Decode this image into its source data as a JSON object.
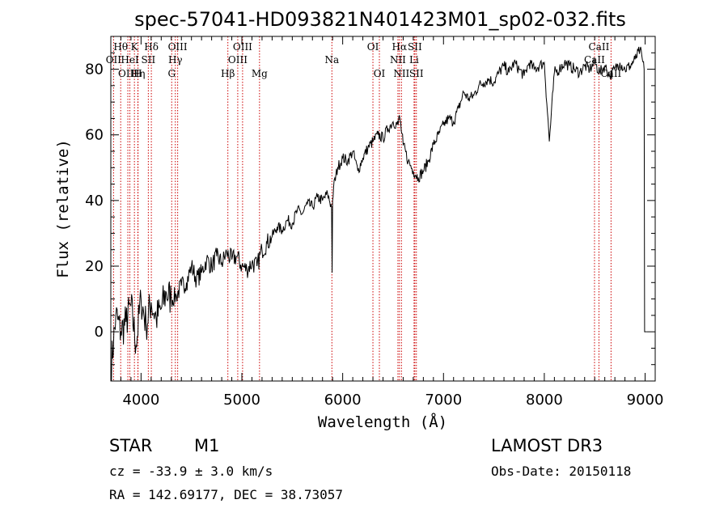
{
  "chart_data": {
    "type": "line",
    "title": "spec-57041-HD093821N401423M01_sp02-032.fits",
    "xlabel": "Wavelength (Å)",
    "ylabel": "Flux (relative)",
    "xlim": [
      3700,
      9100
    ],
    "ylim": [
      -15,
      90
    ],
    "xticks": [
      4000,
      5000,
      6000,
      7000,
      8000,
      9000
    ],
    "yticks": [
      0,
      20,
      40,
      60,
      80
    ],
    "series": [
      {
        "name": "flux",
        "x": [
          3700,
          3750,
          3800,
          3850,
          3900,
          3950,
          4000,
          4050,
          4100,
          4150,
          4200,
          4250,
          4300,
          4350,
          4400,
          4450,
          4500,
          4550,
          4600,
          4650,
          4700,
          4750,
          4800,
          4850,
          4900,
          4950,
          5000,
          5050,
          5100,
          5150,
          5200,
          5250,
          5300,
          5350,
          5400,
          5450,
          5500,
          5550,
          5600,
          5650,
          5700,
          5750,
          5800,
          5850,
          5890,
          5895,
          5900,
          5910,
          5950,
          6000,
          6050,
          6100,
          6150,
          6200,
          6250,
          6300,
          6350,
          6400,
          6450,
          6500,
          6550,
          6563,
          6600,
          6650,
          6700,
          6750,
          6800,
          6850,
          6900,
          6950,
          7000,
          7050,
          7100,
          7150,
          7200,
          7250,
          7300,
          7350,
          7400,
          7450,
          7500,
          7550,
          7600,
          7650,
          7700,
          7750,
          7800,
          7850,
          7900,
          7950,
          8000,
          8050,
          8100,
          8150,
          8200,
          8250,
          8300,
          8350,
          8400,
          8450,
          8500,
          8550,
          8600,
          8650,
          8700,
          8750,
          8800,
          8850,
          8900,
          8950,
          8990,
          8995
        ],
        "y": [
          -12,
          5,
          0,
          3,
          8,
          -4,
          10,
          2,
          9,
          4,
          7,
          12,
          10,
          11,
          14,
          15,
          20,
          16,
          18,
          22,
          20,
          23,
          21,
          24,
          22,
          23,
          20,
          19,
          21,
          20,
          25,
          27,
          29,
          32,
          31,
          34,
          33,
          37,
          36,
          39,
          38,
          41,
          40,
          42,
          38,
          18,
          40,
          44,
          50,
          53,
          52,
          55,
          49,
          53,
          56,
          58,
          60,
          59,
          62,
          64,
          63,
          66,
          57,
          52,
          49,
          47,
          49,
          52,
          57,
          60,
          63,
          65,
          64,
          68,
          73,
          71,
          72,
          75,
          76,
          77,
          76,
          79,
          81,
          79,
          82,
          80,
          78,
          82,
          80,
          81,
          82,
          58,
          79,
          80,
          82,
          81,
          80,
          79,
          81,
          80,
          82,
          79,
          81,
          78,
          80,
          82,
          80,
          81,
          83,
          86,
          80,
          0
        ]
      }
    ],
    "emission_lines": [
      {
        "label": "Hθ",
        "x": 3798,
        "row": 1
      },
      {
        "label": "OII",
        "x": 3727,
        "row": 2
      },
      {
        "label": "OIII",
        "x": 3869,
        "row": 3
      },
      {
        "label": "HeI",
        "x": 3889,
        "row": 2
      },
      {
        "label": "K",
        "x": 3934,
        "row": 1
      },
      {
        "label": "Hη",
        "x": 3970,
        "row": 3
      },
      {
        "label": "H",
        "x": 3968,
        "row": 3
      },
      {
        "label": "SII",
        "x": 4072,
        "row": 2
      },
      {
        "label": "Hδ",
        "x": 4102,
        "row": 1
      },
      {
        "label": "OIII",
        "x": 4363,
        "row": 1
      },
      {
        "label": "Hγ",
        "x": 4340,
        "row": 2
      },
      {
        "label": "G",
        "x": 4304,
        "row": 3
      },
      {
        "label": "Hβ",
        "x": 4861,
        "row": 3
      },
      {
        "label": "OIII",
        "x": 5007,
        "row": 1
      },
      {
        "label": "OIII",
        "x": 4959,
        "row": 2
      },
      {
        "label": "Mg",
        "x": 5175,
        "row": 3
      },
      {
        "label": "Na",
        "x": 5893,
        "row": 2
      },
      {
        "label": "OI",
        "x": 6300,
        "row": 1
      },
      {
        "label": "OI",
        "x": 6364,
        "row": 3
      },
      {
        "label": "Hα",
        "x": 6563,
        "row": 1
      },
      {
        "label": "SII",
        "x": 6716,
        "row": 1
      },
      {
        "label": "NII",
        "x": 6548,
        "row": 2
      },
      {
        "label": "Li",
        "x": 6708,
        "row": 2
      },
      {
        "label": "NII",
        "x": 6583,
        "row": 3
      },
      {
        "label": "SII",
        "x": 6731,
        "row": 3
      },
      {
        "label": "CaII",
        "x": 8542,
        "row": 1
      },
      {
        "label": "CaII",
        "x": 8498,
        "row": 2
      },
      {
        "label": "CaII",
        "x": 8662,
        "row": 3
      }
    ]
  },
  "info": {
    "class_label": "STAR",
    "subclass": "M1",
    "cz": "cz = -33.9 ± 3.0 km/s",
    "radec": "RA = 142.69177, DEC =  38.73057",
    "survey": "LAMOST DR3",
    "obs_date": "Obs-Date: 20150118"
  }
}
